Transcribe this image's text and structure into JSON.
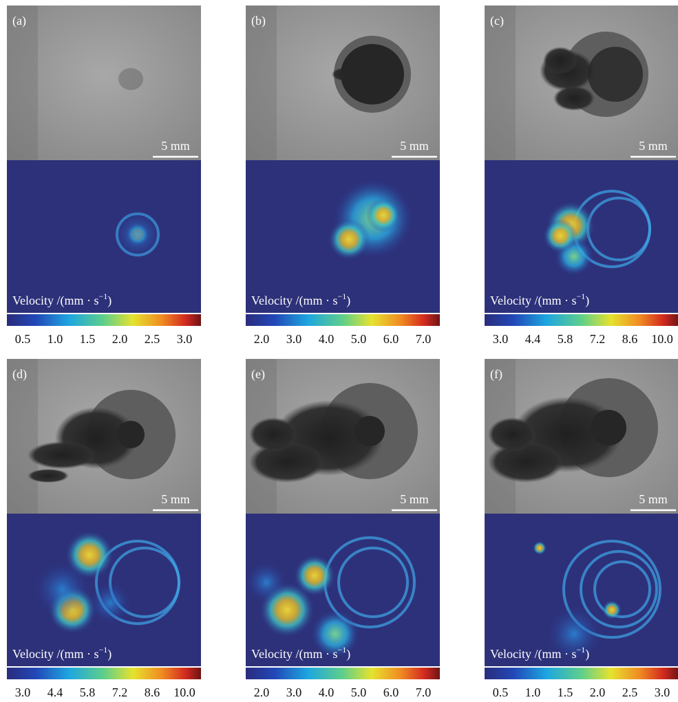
{
  "panels": [
    {
      "label": "(a)",
      "scale_bar": "5 mm",
      "velocity_label": {
        "text": "Velocity /(mm · s",
        "exponent": "−1",
        "close": ")"
      },
      "colorbar_ticks": [
        "0.5",
        "1.0",
        "1.5",
        "2.0",
        "2.5",
        "3.0"
      ]
    },
    {
      "label": "(b)",
      "scale_bar": "5 mm",
      "velocity_label": {
        "text": "Velocity /(mm · s",
        "exponent": "−1",
        "close": ")"
      },
      "colorbar_ticks": [
        "2.0",
        "3.0",
        "4.0",
        "5.0",
        "6.0",
        "7.0"
      ]
    },
    {
      "label": "(c)",
      "scale_bar": "5 mm",
      "velocity_label": {
        "text": "Velocity /(mm · s",
        "exponent": "−1",
        "close": ")"
      },
      "colorbar_ticks": [
        "3.0",
        "4.4",
        "5.8",
        "7.2",
        "8.6",
        "10.0"
      ]
    },
    {
      "label": "(d)",
      "scale_bar": "5 mm",
      "velocity_label": {
        "text": "Velocity /(mm · s",
        "exponent": "−1",
        "close": ")"
      },
      "colorbar_ticks": [
        "3.0",
        "4.4",
        "5.8",
        "7.2",
        "8.6",
        "10.0"
      ]
    },
    {
      "label": "(e)",
      "scale_bar": "5 mm",
      "velocity_label": {
        "text": "Velocity /(mm · s",
        "exponent": "−1",
        "close": ")"
      },
      "colorbar_ticks": [
        "2.0",
        "3.0",
        "4.0",
        "5.0",
        "6.0",
        "7.0"
      ]
    },
    {
      "label": "(f)",
      "scale_bar": "5 mm",
      "velocity_label": {
        "text": "Velocity /(mm · s",
        "exponent": "−1",
        "close": ")"
      },
      "colorbar_ticks": [
        "0.5",
        "1.0",
        "1.5",
        "2.0",
        "2.5",
        "3.0"
      ]
    }
  ]
}
